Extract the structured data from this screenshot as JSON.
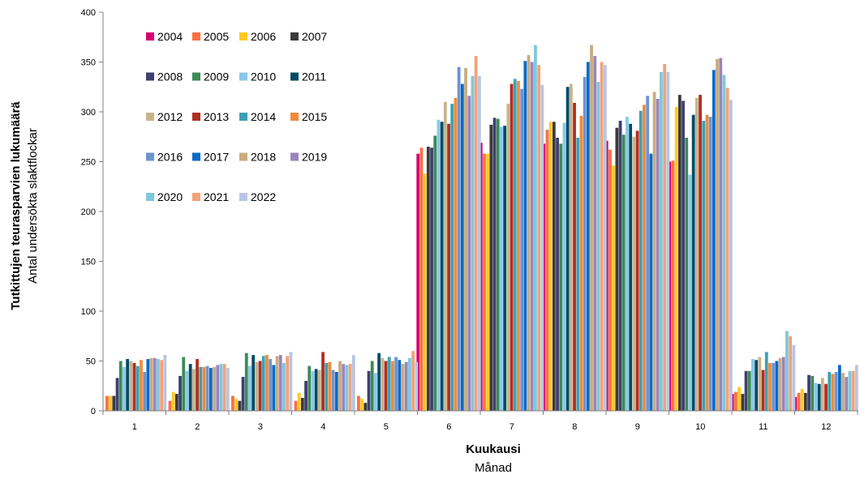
{
  "chart_data": {
    "type": "bar",
    "ylabel_fi": "Tutkittujen teurasparvien lukumäärä",
    "ylabel_sv": "Antal undersökta slaktflockar",
    "xlabel_fi": "Kuukausi",
    "xlabel_sv": "Månad",
    "ylim": [
      0,
      400
    ],
    "yticks": [
      "0",
      "50",
      "100",
      "150",
      "200",
      "250",
      "300",
      "350",
      "400"
    ],
    "categories": [
      "1",
      "2",
      "3",
      "4",
      "5",
      "6",
      "7",
      "8",
      "9",
      "10",
      "11",
      "12"
    ],
    "legend_position": "top-left",
    "grid": false,
    "series": [
      {
        "name": "2004",
        "color": "#d6006f",
        "values": [
          0,
          0,
          0,
          0,
          0,
          258,
          269,
          268,
          271,
          250,
          17,
          14
        ]
      },
      {
        "name": "2005",
        "color": "#ff6f3f",
        "values": [
          15,
          10,
          15,
          10,
          15,
          264,
          258,
          282,
          262,
          251,
          19,
          18
        ]
      },
      {
        "name": "2006",
        "color": "#ffc924",
        "values": [
          15,
          19,
          12,
          18,
          12,
          238,
          258,
          290,
          246,
          305,
          24,
          22
        ]
      },
      {
        "name": "2007",
        "color": "#3b3b3b",
        "values": [
          15,
          17,
          10,
          13,
          8,
          265,
          287,
          290,
          284,
          317,
          17,
          18
        ]
      },
      {
        "name": "2008",
        "color": "#3f3f70",
        "values": [
          33,
          35,
          34,
          30,
          40,
          264,
          294,
          274,
          291,
          311,
          40,
          36
        ]
      },
      {
        "name": "2009",
        "color": "#3a8b57",
        "values": [
          50,
          54,
          58,
          45,
          50,
          276,
          293,
          268,
          277,
          274,
          40,
          35
        ]
      },
      {
        "name": "2010",
        "color": "#8bc8ea",
        "values": [
          44,
          40,
          45,
          40,
          38,
          292,
          285,
          289,
          295,
          237,
          52,
          28
        ]
      },
      {
        "name": "2011",
        "color": "#004b66",
        "values": [
          52,
          47,
          56,
          42,
          58,
          290,
          286,
          325,
          288,
          297,
          51,
          27
        ]
      },
      {
        "name": "2012",
        "color": "#c8b48c",
        "values": [
          50,
          42,
          49,
          41,
          53,
          310,
          308,
          328,
          275,
          314,
          54,
          33
        ]
      },
      {
        "name": "2013",
        "color": "#b22e22",
        "values": [
          48,
          52,
          50,
          59,
          50,
          288,
          328,
          309,
          281,
          317,
          41,
          27
        ]
      },
      {
        "name": "2014",
        "color": "#3ba1b2",
        "values": [
          45,
          44,
          55,
          48,
          54,
          308,
          333,
          274,
          301,
          291,
          59,
          39
        ]
      },
      {
        "name": "2015",
        "color": "#f08b3a",
        "values": [
          51,
          44,
          56,
          49,
          50,
          314,
          331,
          296,
          307,
          297,
          48,
          37
        ]
      },
      {
        "name": "2016",
        "color": "#6e94cf",
        "values": [
          39,
          45,
          52,
          41,
          54,
          345,
          323,
          335,
          316,
          295,
          48,
          39
        ]
      },
      {
        "name": "2017",
        "color": "#0a6ac8",
        "values": [
          52,
          43,
          46,
          39,
          51,
          328,
          351,
          350,
          258,
          342,
          50,
          46
        ]
      },
      {
        "name": "2018",
        "color": "#c8ac82",
        "values": [
          53,
          44,
          55,
          50,
          47,
          344,
          357,
          367,
          320,
          353,
          53,
          38
        ]
      },
      {
        "name": "2019",
        "color": "#9a84bc",
        "values": [
          53,
          46,
          56,
          47,
          49,
          316,
          350,
          356,
          313,
          354,
          54,
          34
        ]
      },
      {
        "name": "2020",
        "color": "#7fc8dc",
        "values": [
          52,
          47,
          48,
          46,
          53,
          336,
          367,
          330,
          340,
          337,
          80,
          40
        ]
      },
      {
        "name": "2021",
        "color": "#f4a178",
        "values": [
          51,
          47,
          55,
          47,
          60,
          356,
          347,
          350,
          348,
          324,
          75,
          40
        ]
      },
      {
        "name": "2022",
        "color": "#b8c6e4",
        "values": [
          56,
          43,
          59,
          56,
          49,
          336,
          327,
          347,
          340,
          312,
          66,
          46
        ]
      }
    ]
  }
}
